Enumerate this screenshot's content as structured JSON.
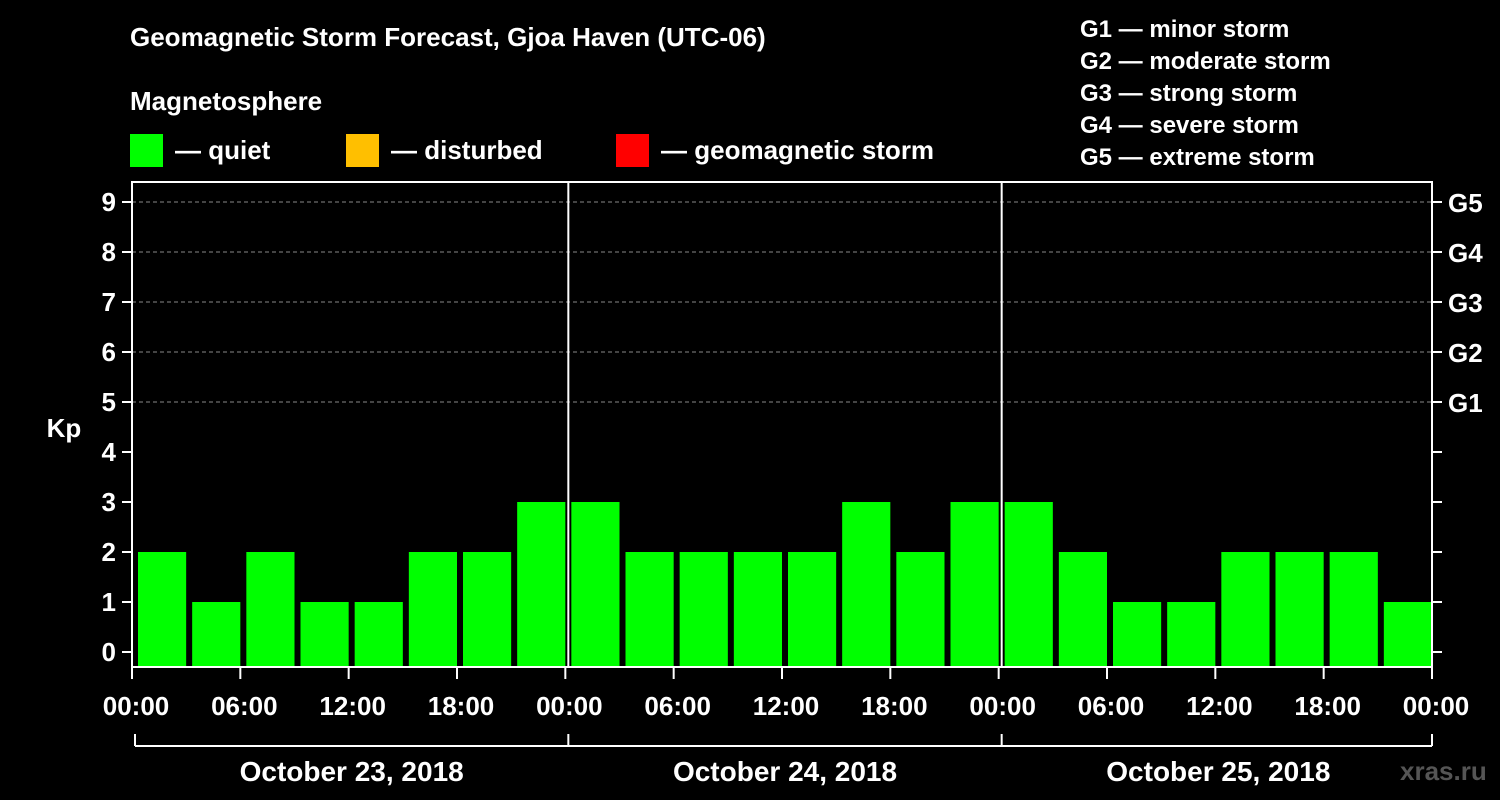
{
  "title": "Geomagnetic Storm Forecast, Gjoa Haven (UTC-06)",
  "magnetosphere_label": "Magnetosphere",
  "legend": [
    {
      "label": "— quiet",
      "color": "#00ff00"
    },
    {
      "label": "— disturbed",
      "color": "#ffbf00"
    },
    {
      "label": "— geomagnetic storm",
      "color": "#ff0000"
    }
  ],
  "g_legend": [
    "G1 — minor storm",
    "G2 — moderate storm",
    "G3 — strong storm",
    "G4 — severe storm",
    "G5 — extreme storm"
  ],
  "watermark": "xras.ru",
  "chart_data": {
    "type": "bar",
    "ylabel": "Kp",
    "ylim": [
      0,
      9
    ],
    "yticks": [
      "0",
      "1",
      "2",
      "3",
      "4",
      "5",
      "6",
      "7",
      "8",
      "9"
    ],
    "right_ticks": [
      {
        "value": 5,
        "label": "G1"
      },
      {
        "value": 6,
        "label": "G2"
      },
      {
        "value": 7,
        "label": "G3"
      },
      {
        "value": 8,
        "label": "G4"
      },
      {
        "value": 9,
        "label": "G5"
      }
    ],
    "xtick_labels": [
      "00:00",
      "06:00",
      "12:00",
      "18:00",
      "00:00",
      "06:00",
      "12:00",
      "18:00",
      "00:00",
      "06:00",
      "12:00",
      "18:00",
      "00:00"
    ],
    "days": [
      "October 23, 2018",
      "October 24, 2018",
      "October 25, 2018"
    ],
    "interval_hours": 3,
    "values": [
      2,
      1,
      2,
      1,
      1,
      2,
      2,
      3,
      3,
      2,
      2,
      2,
      2,
      3,
      2,
      3,
      3,
      2,
      1,
      1,
      2,
      2,
      2,
      1
    ],
    "bar_color": "#00ff00",
    "gridlines": "dashed at 5-9"
  }
}
